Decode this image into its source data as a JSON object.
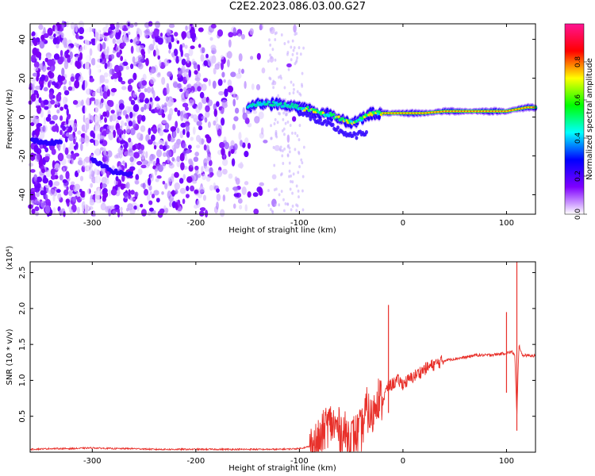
{
  "title": "C2E2.2023.086.03.00.G27",
  "chart_data": [
    {
      "type": "heatmap",
      "xlabel": "Height of straight line (km)",
      "ylabel": "Frequency (Hz)",
      "xlim": [
        -360,
        128
      ],
      "ylim": [
        -50,
        48
      ],
      "x_ticks": [
        -300,
        -200,
        -100,
        0,
        100
      ],
      "y_ticks": [
        -40,
        -20,
        0,
        20,
        40
      ],
      "colorbar": {
        "label": "Normalized spectral amplitude",
        "range": [
          0,
          1
        ],
        "ticks": [
          "0.0",
          "0.2",
          "0.4",
          "0.6",
          "0.8"
        ],
        "colors": [
          "#ffffff",
          "#7f00ff",
          "#0000ff",
          "#00ffff",
          "#00ff00",
          "#ffff00",
          "#ff0000",
          "#ff1493"
        ]
      },
      "ridge": {
        "x": [
          -360,
          -345,
          -330,
          -300,
          -280,
          -260,
          -150,
          -130,
          -110,
          -100,
          -90,
          -80,
          -70,
          -60,
          -50,
          -40,
          -30,
          -20,
          -10,
          0,
          20,
          40,
          60,
          80,
          100,
          110,
          120,
          128
        ],
        "y": [
          -12,
          -13,
          -13,
          -22,
          -28,
          -30,
          6,
          7,
          6,
          5,
          4,
          2,
          1,
          -1,
          -3,
          -1,
          2,
          2,
          2,
          2,
          2,
          3,
          3,
          3,
          3,
          4,
          5,
          5
        ]
      },
      "grid": false
    },
    {
      "type": "line",
      "xlabel": "Height of straight line (km)",
      "ylabel": "SNR (10 * v/v)",
      "y_multiplier": "(x10⁴)",
      "xlim": [
        -360,
        128
      ],
      "ylim": [
        0,
        2.65
      ],
      "x_ticks": [
        -300,
        -200,
        -100,
        0,
        100
      ],
      "y_ticks": [
        0.5,
        1.0,
        1.5,
        2.0,
        2.5
      ],
      "series": [
        {
          "color": "#e8302a",
          "x": [
            -360,
            -340,
            -320,
            -300,
            -280,
            -260,
            -240,
            -220,
            -200,
            -180,
            -160,
            -140,
            -120,
            -100,
            -90,
            -80,
            -75,
            -70,
            -60,
            -50,
            -40,
            -35,
            -30,
            -25,
            -20,
            -15,
            -10,
            -5,
            0,
            10,
            20,
            30,
            40,
            50,
            60,
            70,
            80,
            90,
            95,
            100,
            105,
            108,
            110,
            112,
            115,
            120,
            128
          ],
          "y": [
            0.04,
            0.05,
            0.05,
            0.06,
            0.05,
            0.05,
            0.04,
            0.04,
            0.04,
            0.04,
            0.04,
            0.04,
            0.04,
            0.05,
            0.08,
            0.15,
            0.35,
            0.4,
            0.3,
            0.2,
            0.3,
            0.6,
            0.45,
            0.8,
            0.7,
            0.9,
            0.95,
            1.0,
            0.95,
            1.05,
            1.15,
            1.22,
            1.28,
            1.3,
            1.32,
            1.35,
            1.35,
            1.36,
            1.37,
            1.38,
            1.4,
            1.35,
            0.5,
            1.5,
            1.35,
            1.35,
            1.34
          ]
        }
      ],
      "spikes": [
        {
          "x": -14,
          "y": 2.05
        },
        {
          "x": 100,
          "y": 1.95
        },
        {
          "x": 110,
          "y": 2.65
        }
      ],
      "grid": false
    }
  ]
}
